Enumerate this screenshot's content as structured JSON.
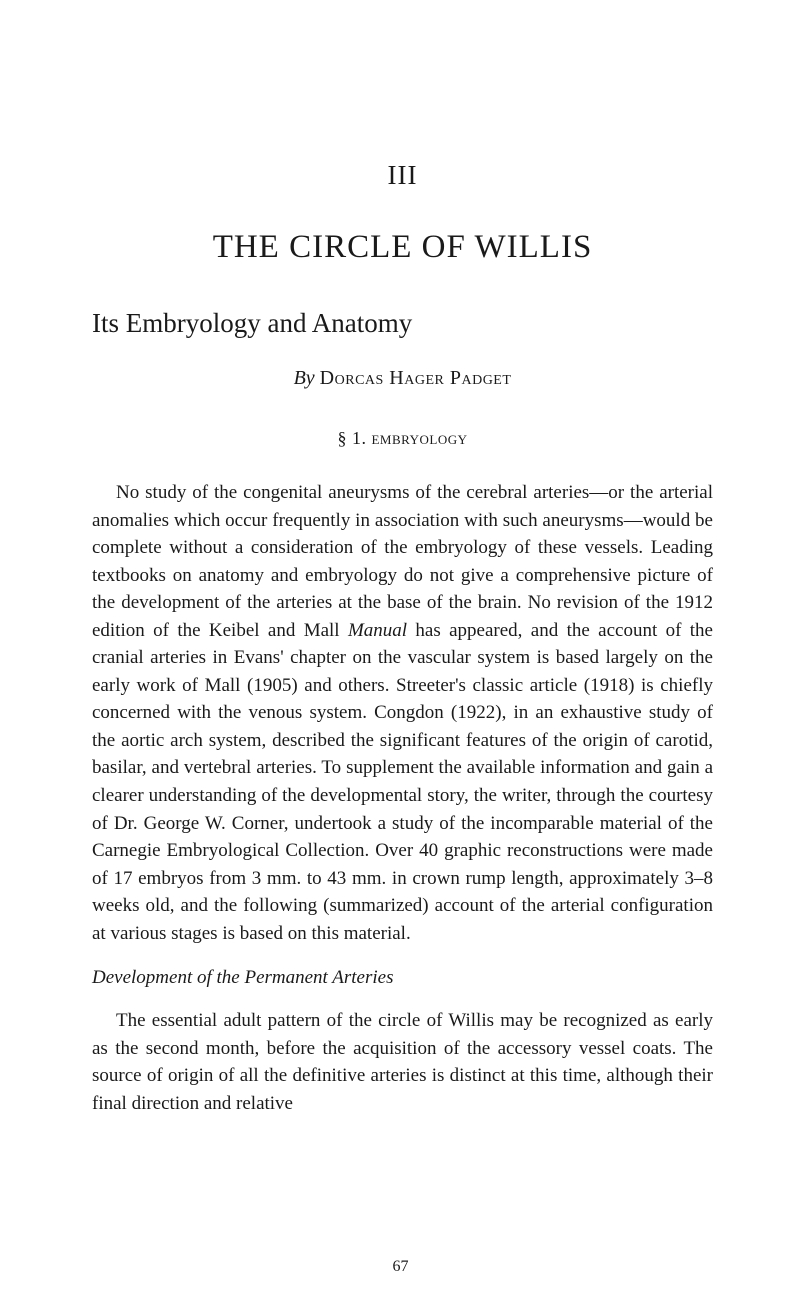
{
  "chapter_number": "III",
  "chapter_title": "THE CIRCLE OF WILLIS",
  "subtitle": "Its Embryology and Anatomy",
  "author": {
    "by": "By",
    "name": "Dorcas Hager Padget"
  },
  "section": {
    "marker": "§ 1.",
    "label": "embryology"
  },
  "para1_pre": "No study of the congenital aneurysms of the cerebral arteries—or the arterial anomalies which occur frequently in association with such aneurysms—would be complete without a consideration of the embryology of these vessels. Leading textbooks on anatomy and embryology do not give a comprehensive picture of the development of the arteries at the base of the brain. No revision of the 1912 edition of the Keibel and Mall ",
  "para1_italic": "Manual",
  "para1_post": " has appeared, and the account of the cranial arteries in Evans' chapter on the vascular system is based largely on the early work of Mall (1905) and others. Streeter's classic article (1918) is chiefly concerned with the venous system. Congdon (1922), in an exhaustive study of the aortic arch system, described the significant features of the origin of carotid, basilar, and vertebral arteries. To supplement the available information and gain a clearer understanding of the developmental story, the writer, through the courtesy of Dr. George W. Corner, undertook a study of the incomparable material of the Carnegie Embryological Collection. Over 40 graphic reconstructions were made of 17 embryos from 3 mm. to 43 mm. in crown rump length, approximately 3–8 weeks old, and the following (summarized) account of the arterial configuration at various stages is based on this material.",
  "subsection_title": "Development of the Permanent Arteries",
  "para2": "The essential adult pattern of the circle of Willis may be recognized as early as the second month, before the acquisition of the accessory vessel coats. The source of origin of all the definitive arteries is distinct at this time, although their final direction and relative",
  "page_number": "67"
}
